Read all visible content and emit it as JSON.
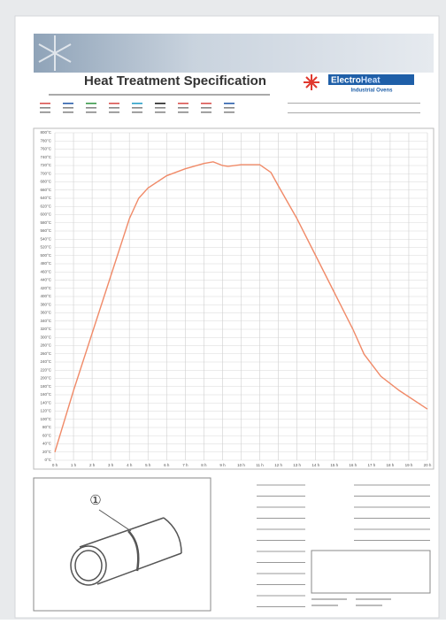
{
  "header": {
    "title": "Heat Treatment Specification",
    "logo": {
      "brand_left": "Electro",
      "brand_right": "Heat",
      "tagline": "Industrial Ovens"
    }
  },
  "chart_data": {
    "type": "line",
    "x": [
      0,
      1,
      2,
      3,
      4,
      4.5,
      5,
      6,
      7,
      8,
      8.5,
      9,
      9.3,
      10,
      11,
      11.6,
      12,
      13,
      14,
      15,
      16,
      16.6,
      17.5,
      18.5,
      20
    ],
    "series": [
      {
        "color": "#f08a68",
        "values": [
          20,
          170,
          310,
          450,
          590,
          640,
          665,
          695,
          712,
          725,
          729,
          720,
          718,
          722,
          722,
          703,
          670,
          590,
          500,
          410,
          320,
          259,
          205,
          170,
          125
        ]
      }
    ],
    "xlim": [
      0,
      20
    ],
    "ylim": [
      0,
      800
    ],
    "grid": true,
    "xticks": [
      {
        "value": 0,
        "label": "0 h"
      },
      {
        "value": 1,
        "label": "1 h"
      },
      {
        "value": 2,
        "label": "2 h"
      },
      {
        "value": 3,
        "label": "3 h"
      },
      {
        "value": 4,
        "label": "4 h"
      },
      {
        "value": 5,
        "label": "5 h"
      },
      {
        "value": 6,
        "label": "6 h"
      },
      {
        "value": 7,
        "label": "7 h"
      },
      {
        "value": 8,
        "label": "8 h"
      },
      {
        "value": 9,
        "label": "9 h"
      },
      {
        "value": 10,
        "label": "10 h"
      },
      {
        "value": 11,
        "label": "11 h"
      },
      {
        "value": 12,
        "label": "12 h"
      },
      {
        "value": 13,
        "label": "13 h"
      },
      {
        "value": 14,
        "label": "14 h"
      },
      {
        "value": 15,
        "label": "15 h"
      },
      {
        "value": 16,
        "label": "16 h"
      },
      {
        "value": 17,
        "label": "17 h"
      },
      {
        "value": 18,
        "label": "18 h"
      },
      {
        "value": 19,
        "label": "19 h"
      },
      {
        "value": 20,
        "label": "20 h"
      }
    ],
    "yticks": [
      {
        "value": 0,
        "label": "0°C"
      },
      {
        "value": 20,
        "label": "20°C"
      },
      {
        "value": 40,
        "label": "40°C"
      },
      {
        "value": 60,
        "label": "60°C"
      },
      {
        "value": 80,
        "label": "80°C"
      },
      {
        "value": 100,
        "label": "100°C"
      },
      {
        "value": 120,
        "label": "120°C"
      },
      {
        "value": 140,
        "label": "140°C"
      },
      {
        "value": 160,
        "label": "160°C"
      },
      {
        "value": 180,
        "label": "180°C"
      },
      {
        "value": 200,
        "label": "200°C"
      },
      {
        "value": 220,
        "label": "220°C"
      },
      {
        "value": 240,
        "label": "240°C"
      },
      {
        "value": 260,
        "label": "260°C"
      },
      {
        "value": 280,
        "label": "280°C"
      },
      {
        "value": 300,
        "label": "300°C"
      },
      {
        "value": 320,
        "label": "320°C"
      },
      {
        "value": 340,
        "label": "340°C"
      },
      {
        "value": 360,
        "label": "360°C"
      },
      {
        "value": 380,
        "label": "380°C"
      },
      {
        "value": 400,
        "label": "400°C"
      },
      {
        "value": 420,
        "label": "420°C"
      },
      {
        "value": 440,
        "label": "440°C"
      },
      {
        "value": 460,
        "label": "460°C"
      },
      {
        "value": 480,
        "label": "480°C"
      },
      {
        "value": 500,
        "label": "500°C"
      },
      {
        "value": 520,
        "label": "520°C"
      },
      {
        "value": 540,
        "label": "540°C"
      },
      {
        "value": 560,
        "label": "560°C"
      },
      {
        "value": 580,
        "label": "580°C"
      },
      {
        "value": 600,
        "label": "600°C"
      },
      {
        "value": 620,
        "label": "620°C"
      },
      {
        "value": 640,
        "label": "640°C"
      },
      {
        "value": 660,
        "label": "660°C"
      },
      {
        "value": 680,
        "label": "680°C"
      },
      {
        "value": 700,
        "label": "700°C"
      },
      {
        "value": 720,
        "label": "720°C"
      },
      {
        "value": 740,
        "label": "740°C"
      },
      {
        "value": 760,
        "label": "760°C"
      },
      {
        "value": 780,
        "label": "780°C"
      },
      {
        "value": 800,
        "label": "800°C"
      }
    ]
  },
  "figure": {
    "marker": "①"
  }
}
